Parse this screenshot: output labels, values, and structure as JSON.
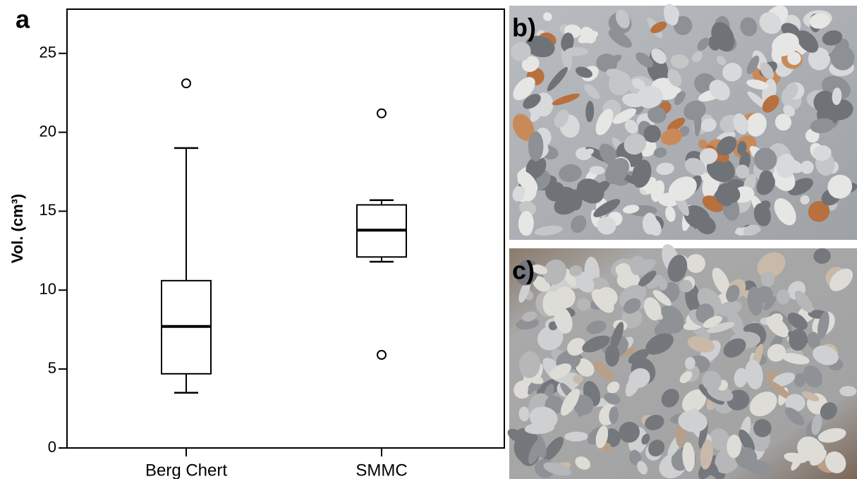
{
  "figure": {
    "panel_labels": [
      "a",
      "b)",
      "c)"
    ]
  },
  "chart_data": {
    "type": "box",
    "ylabel": "Vol. (cm³)",
    "categories": [
      "Berg Chert",
      "SMMC"
    ],
    "boxes": [
      {
        "whislo": 3.5,
        "q1": 4.7,
        "med": 7.7,
        "q3": 10.6,
        "whishi": 19.0,
        "fliers": [
          23.1
        ]
      },
      {
        "whislo": 11.8,
        "q1": 12.1,
        "med": 13.8,
        "q3": 15.4,
        "whishi": 15.7,
        "fliers": [
          21.2,
          5.9
        ]
      }
    ],
    "ylim": [
      0,
      27.8
    ],
    "yticks": [
      0,
      5,
      10,
      15,
      20,
      25
    ],
    "color": "#000000"
  }
}
